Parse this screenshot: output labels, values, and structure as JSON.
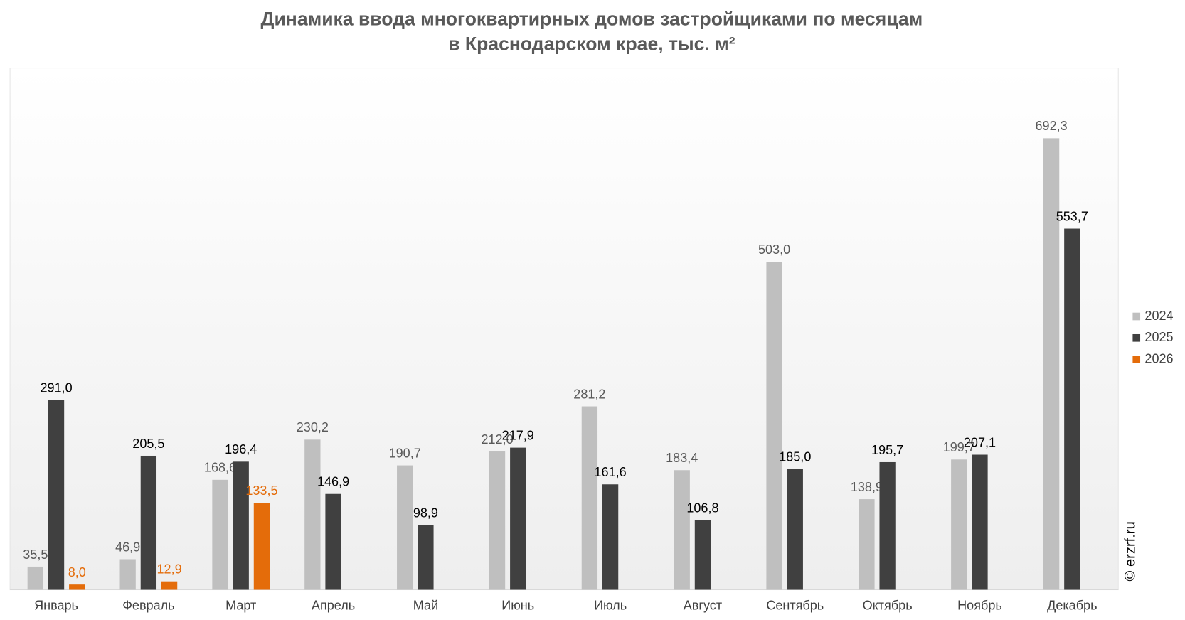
{
  "chart_data": {
    "type": "bar",
    "title": [
      "Динамика ввода многоквартирных домов застройщиками по месяцам",
      "в Краснодарском крае, тыс. м²"
    ],
    "categories": [
      "Январь",
      "Февраль",
      "Март",
      "Апрель",
      "Май",
      "Июнь",
      "Июль",
      "Август",
      "Сентябрь",
      "Октябрь",
      "Ноябрь",
      "Декабрь"
    ],
    "series": [
      {
        "name": "2024",
        "color": "#bfbfbf",
        "label_color": "#595959",
        "values": [
          35.5,
          46.9,
          168.6,
          230.2,
          190.7,
          212.0,
          281.2,
          183.4,
          503.0,
          138.9,
          199.7,
          692.3
        ],
        "value_labels": [
          "35,5",
          "46,9",
          "168,6",
          "230,2",
          "190,7",
          "212,0",
          "281,2",
          "183,4",
          "503,0",
          "138,9",
          "199,7",
          "692,3"
        ]
      },
      {
        "name": "2025",
        "color": "#404040",
        "label_color": "#000000",
        "values": [
          291.0,
          205.5,
          196.4,
          146.9,
          98.9,
          217.9,
          161.6,
          106.8,
          185.0,
          195.7,
          207.1,
          553.7
        ],
        "value_labels": [
          "291,0",
          "205,5",
          "196,4",
          "146,9",
          "98,9",
          "217,9",
          "161,6",
          "106,8",
          "185,0",
          "195,7",
          "207,1",
          "553,7"
        ]
      },
      {
        "name": "2026",
        "color": "#e46c0a",
        "label_color": "#e46c0a",
        "values": [
          8.0,
          12.9,
          133.5,
          null,
          null,
          null,
          null,
          null,
          null,
          null,
          null,
          null
        ],
        "value_labels": [
          "8,0",
          "12,9",
          "133,5",
          null,
          null,
          null,
          null,
          null,
          null,
          null,
          null,
          null
        ]
      }
    ],
    "legend": "right",
    "watermark": "© erzrf.ru"
  }
}
